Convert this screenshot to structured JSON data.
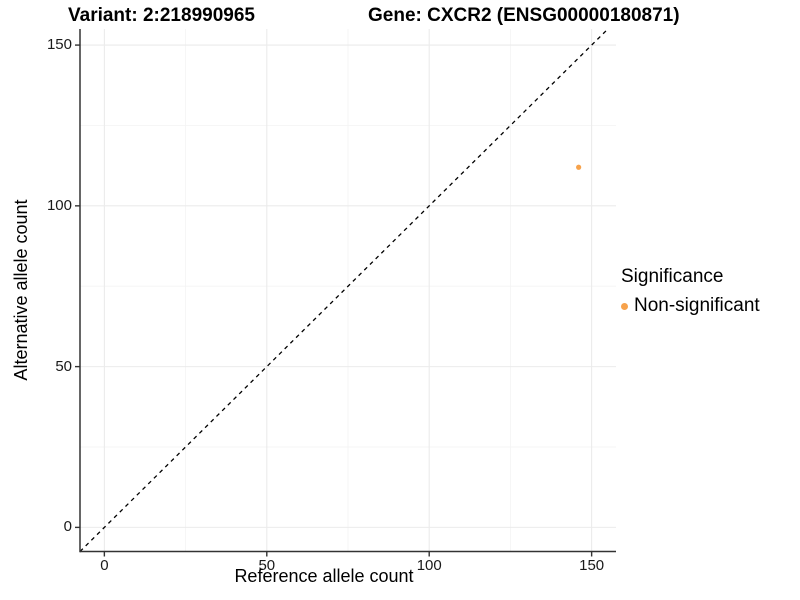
{
  "chart_data": {
    "type": "scatter",
    "title_left": "Variant: 2:218990965",
    "title_right": "Gene: CXCR2 (ENSG00000180871)",
    "xlabel": "Reference allele count",
    "ylabel": "Alternative allele count",
    "xlim": [
      -7.5,
      157.5
    ],
    "ylim": [
      -7.5,
      155
    ],
    "x_ticks": [
      0,
      50,
      100,
      150
    ],
    "y_ticks": [
      0,
      50,
      100,
      150
    ],
    "x_minor_ticks": [
      25,
      75,
      125
    ],
    "y_minor_ticks": [
      25,
      75,
      125
    ],
    "grid": "major+minor",
    "identity_line": {
      "slope": 1,
      "intercept": 0,
      "linetype": "dashed",
      "color": "#000000"
    },
    "series": [
      {
        "name": "Non-significant",
        "color": "#F7A24B",
        "point_radius": 2.6,
        "points": [
          [
            146,
            112
          ]
        ]
      }
    ],
    "legend": {
      "title": "Significance",
      "position": "right",
      "items": [
        {
          "label": "Non-significant",
          "color": "#F7A24B"
        }
      ]
    }
  },
  "colors": {
    "background": "#FFFFFF",
    "grid_major": "#EBEBEB",
    "grid_minor": "#F4F4F4",
    "axis": "#333333",
    "tick_label": "#1a1a1a",
    "title_text": "#000000"
  }
}
